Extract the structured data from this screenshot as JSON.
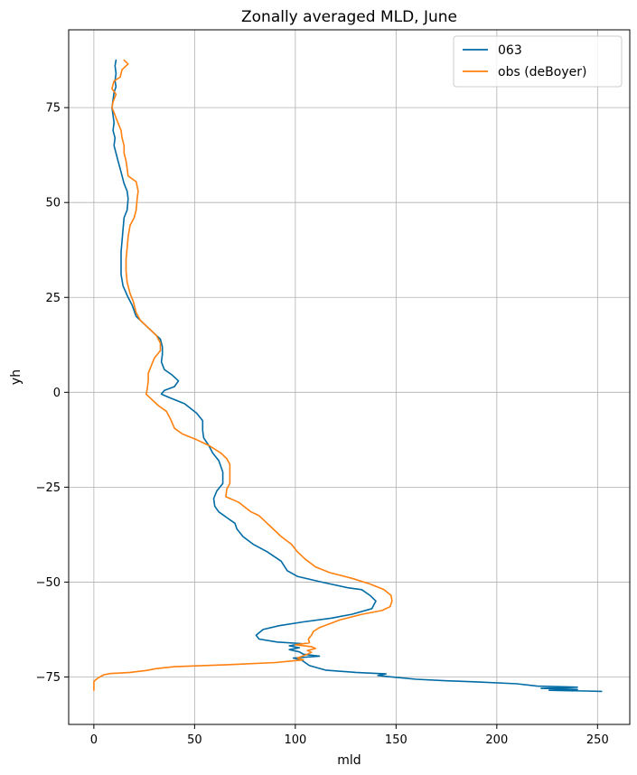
{
  "chart_data": {
    "type": "line",
    "title": "Zonally averaged MLD, June",
    "xlabel": "mld",
    "ylabel": "yh",
    "xlim": [
      -12.5,
      266
    ],
    "ylim": [
      -87.5,
      95.5
    ],
    "xticks": [
      0,
      50,
      100,
      150,
      200,
      250
    ],
    "yticks": [
      -75,
      -50,
      -25,
      0,
      25,
      50,
      75
    ],
    "xtick_labels": [
      "0",
      "50",
      "100",
      "150",
      "200",
      "250"
    ],
    "ytick_labels": [
      "−75",
      "−50",
      "−25",
      "0",
      "25",
      "50",
      "75"
    ],
    "grid": true,
    "legend_placement": "top-right",
    "series": [
      {
        "name": "063",
        "color": "#006ba4",
        "points": [
          [
            11,
            87.5
          ],
          [
            10.5,
            86
          ],
          [
            11,
            84
          ],
          [
            10.5,
            82
          ],
          [
            11,
            80.5
          ],
          [
            10,
            79
          ],
          [
            9.5,
            77
          ],
          [
            9,
            75
          ],
          [
            9.5,
            73
          ],
          [
            10,
            71
          ],
          [
            9.5,
            69
          ],
          [
            10.5,
            67
          ],
          [
            10,
            65
          ],
          [
            11,
            63
          ],
          [
            12,
            61
          ],
          [
            13,
            59
          ],
          [
            14,
            57
          ],
          [
            15,
            55
          ],
          [
            16.5,
            53
          ],
          [
            17,
            51
          ],
          [
            16.5,
            48
          ],
          [
            15,
            46
          ],
          [
            14.5,
            43
          ],
          [
            14,
            40
          ],
          [
            13.5,
            37
          ],
          [
            13.5,
            34
          ],
          [
            13.5,
            31
          ],
          [
            14.5,
            28
          ],
          [
            17,
            25
          ],
          [
            19,
            23
          ],
          [
            21,
            20
          ],
          [
            25,
            18
          ],
          [
            29,
            16
          ],
          [
            33,
            14
          ],
          [
            34,
            12
          ],
          [
            34,
            10
          ],
          [
            33.5,
            8
          ],
          [
            35,
            6
          ],
          [
            39,
            4.5
          ],
          [
            42,
            3
          ],
          [
            40,
            1.5
          ],
          [
            35,
            0.5
          ],
          [
            33.5,
            -0.5
          ],
          [
            38,
            -1.5
          ],
          [
            45,
            -3
          ],
          [
            51,
            -5.5
          ],
          [
            54,
            -7.5
          ],
          [
            54,
            -10
          ],
          [
            54.5,
            -12
          ],
          [
            57,
            -14
          ],
          [
            59,
            -16
          ],
          [
            62,
            -18
          ],
          [
            64,
            -21
          ],
          [
            64,
            -24
          ],
          [
            61,
            -26
          ],
          [
            59.5,
            -28
          ],
          [
            60,
            -30
          ],
          [
            62,
            -31.5
          ],
          [
            66,
            -33
          ],
          [
            70,
            -34.5
          ],
          [
            71,
            -36
          ],
          [
            74,
            -38
          ],
          [
            79,
            -40
          ],
          [
            86,
            -42
          ],
          [
            93,
            -44.5
          ],
          [
            96,
            -47
          ],
          [
            101,
            -48.5
          ],
          [
            113,
            -50
          ],
          [
            126,
            -51.5
          ],
          [
            133,
            -52
          ],
          [
            137,
            -53.5
          ],
          [
            140,
            -55
          ],
          [
            138,
            -57
          ],
          [
            128,
            -58.5
          ],
          [
            118,
            -59.5
          ],
          [
            104,
            -60.5
          ],
          [
            92,
            -61.5
          ],
          [
            84,
            -62.5
          ],
          [
            80.5,
            -64
          ],
          [
            82,
            -65
          ],
          [
            91,
            -65.8
          ],
          [
            103,
            -66.2
          ],
          [
            97,
            -66.8
          ],
          [
            102,
            -67.3
          ],
          [
            97,
            -67.8
          ],
          [
            102,
            -68.4
          ],
          [
            104,
            -69
          ],
          [
            112,
            -69.5
          ],
          [
            99,
            -70
          ],
          [
            103,
            -70.5
          ],
          [
            107,
            -72
          ],
          [
            115,
            -73.2
          ],
          [
            130,
            -73.8
          ],
          [
            145,
            -74.2
          ],
          [
            141,
            -74.6
          ],
          [
            146,
            -74.9
          ],
          [
            160,
            -75.6
          ],
          [
            175,
            -76
          ],
          [
            190,
            -76.3
          ],
          [
            210,
            -76.8
          ],
          [
            220,
            -77.4
          ],
          [
            240,
            -77.7
          ],
          [
            222,
            -78
          ],
          [
            240,
            -78.3
          ],
          [
            226,
            -78.5
          ],
          [
            244,
            -78.7
          ],
          [
            252,
            -78.8
          ]
        ]
      },
      {
        "name": "obs (deBoyer)",
        "color": "#ff800e",
        "points": [
          [
            15,
            87.5
          ],
          [
            17,
            86.5
          ],
          [
            14,
            85
          ],
          [
            13,
            83
          ],
          [
            10,
            82
          ],
          [
            9,
            80
          ],
          [
            11,
            78.5
          ],
          [
            9.5,
            76.5
          ],
          [
            9,
            75
          ],
          [
            10.5,
            73
          ],
          [
            12,
            71
          ],
          [
            13.5,
            69
          ],
          [
            14,
            67
          ],
          [
            15,
            65
          ],
          [
            15,
            63
          ],
          [
            16,
            61
          ],
          [
            16.5,
            59
          ],
          [
            17,
            57
          ],
          [
            21,
            55.5
          ],
          [
            22,
            53
          ],
          [
            21.5,
            51
          ],
          [
            21,
            48
          ],
          [
            20,
            46
          ],
          [
            18,
            44
          ],
          [
            17,
            41
          ],
          [
            16.5,
            38
          ],
          [
            16,
            35
          ],
          [
            16,
            32
          ],
          [
            16.5,
            29
          ],
          [
            18,
            26
          ],
          [
            19.5,
            24
          ],
          [
            21,
            21
          ],
          [
            23,
            19
          ],
          [
            27,
            17
          ],
          [
            31,
            15
          ],
          [
            33,
            13
          ],
          [
            33,
            11
          ],
          [
            30,
            9
          ],
          [
            28.5,
            7
          ],
          [
            27,
            5
          ],
          [
            27,
            3
          ],
          [
            26.5,
            1
          ],
          [
            26,
            -0.5
          ],
          [
            29,
            -2
          ],
          [
            32,
            -3.5
          ],
          [
            36,
            -5
          ],
          [
            38,
            -7
          ],
          [
            40,
            -9.5
          ],
          [
            44,
            -11
          ],
          [
            51,
            -12.5
          ],
          [
            57,
            -14
          ],
          [
            63,
            -16
          ],
          [
            66,
            -17.5
          ],
          [
            67.5,
            -19
          ],
          [
            67.5,
            -22
          ],
          [
            67.5,
            -24
          ],
          [
            66,
            -25.5
          ],
          [
            65.5,
            -27.5
          ],
          [
            72,
            -29
          ],
          [
            78,
            -31.5
          ],
          [
            82,
            -32.5
          ],
          [
            85,
            -34
          ],
          [
            88,
            -35.5
          ],
          [
            93,
            -38
          ],
          [
            98,
            -40
          ],
          [
            101,
            -42
          ],
          [
            105,
            -44
          ],
          [
            110,
            -46
          ],
          [
            117,
            -47.5
          ],
          [
            128,
            -49
          ],
          [
            137,
            -50.5
          ],
          [
            144,
            -52
          ],
          [
            147.5,
            -53.5
          ],
          [
            148,
            -55
          ],
          [
            147,
            -56.5
          ],
          [
            143,
            -57.5
          ],
          [
            133,
            -58.5
          ],
          [
            122,
            -60
          ],
          [
            117,
            -61
          ],
          [
            112,
            -62
          ],
          [
            109,
            -63
          ],
          [
            108,
            -64
          ],
          [
            106.5,
            -65
          ],
          [
            107,
            -66
          ],
          [
            100,
            -66.5
          ],
          [
            108,
            -67
          ],
          [
            110,
            -67.5
          ],
          [
            106,
            -68
          ],
          [
            108,
            -68.5
          ],
          [
            106,
            -69
          ],
          [
            101,
            -70
          ],
          [
            104,
            -70.5
          ],
          [
            90,
            -71.2
          ],
          [
            70,
            -71.7
          ],
          [
            40,
            -72.3
          ],
          [
            31,
            -72.8
          ],
          [
            26,
            -73.3
          ],
          [
            18,
            -73.8
          ],
          [
            8,
            -74.1
          ],
          [
            5,
            -74.4
          ],
          [
            2,
            -75.3
          ],
          [
            0,
            -76.2
          ],
          [
            0,
            -77
          ],
          [
            0,
            -78.5
          ]
        ]
      }
    ]
  }
}
